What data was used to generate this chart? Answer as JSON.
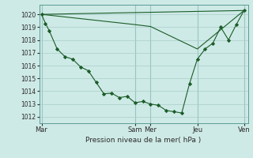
{
  "background_color": "#ceeae6",
  "grid_color": "#a8ccc8",
  "line_color": "#1a5c28",
  "marker_color": "#1a5c28",
  "xlabel": "Pression niveau de la mer( hPa )",
  "ylim": [
    1011.5,
    1020.75
  ],
  "yticks": [
    1012,
    1013,
    1014,
    1015,
    1016,
    1017,
    1018,
    1019,
    1020
  ],
  "day_labels": [
    "Mar",
    "Sam",
    "Mer",
    "Jeu",
    "Ven"
  ],
  "day_positions": [
    0,
    12,
    14,
    20,
    26
  ],
  "xlim": [
    -0.3,
    26.5
  ],
  "series1_x": [
    0,
    0.5,
    1.0,
    2.0,
    3.0,
    4.0,
    5.0,
    6.0,
    7.0,
    8.0,
    9.0,
    10.0,
    11.0,
    12.0,
    13.0,
    14.0,
    15.0,
    16.0,
    17.0,
    18.0,
    19.0,
    20.0,
    21.0,
    22.0,
    23.0,
    24.0,
    25.0,
    26.0
  ],
  "series1_y": [
    1020.0,
    1019.3,
    1018.7,
    1017.3,
    1016.7,
    1016.5,
    1015.9,
    1015.6,
    1014.7,
    1013.8,
    1013.85,
    1013.5,
    1013.6,
    1013.1,
    1013.2,
    1013.0,
    1012.9,
    1012.5,
    1012.4,
    1012.3,
    1014.6,
    1016.5,
    1017.3,
    1017.75,
    1019.0,
    1018.0,
    1019.2,
    1020.3
  ],
  "series2_x": [
    0,
    12,
    14,
    20,
    26
  ],
  "series2_y": [
    1020.0,
    1019.2,
    1019.05,
    1017.3,
    1020.3
  ],
  "series3_x": [
    0,
    26
  ],
  "series3_y": [
    1020.0,
    1020.3
  ]
}
